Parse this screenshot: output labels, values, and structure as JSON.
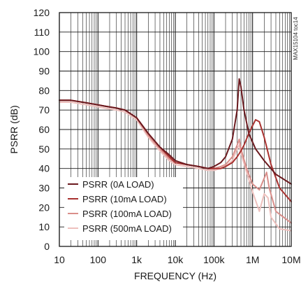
{
  "chart_data": {
    "type": "line",
    "xlabel": "FREQUENCY (Hz)",
    "ylabel": "PSRR (dB)",
    "figure_id": "MAX15104 toc14",
    "x_scale": "log",
    "xlim": [
      10,
      10000000
    ],
    "ylim": [
      0,
      120
    ],
    "x_ticks": [
      10,
      100,
      1000,
      10000,
      100000,
      1000000,
      10000000
    ],
    "x_tick_labels": [
      "10",
      "100",
      "1k",
      "10k",
      "100k",
      "1M",
      "10M"
    ],
    "y_ticks": [
      0,
      10,
      20,
      30,
      40,
      50,
      60,
      70,
      80,
      90,
      100,
      110,
      120
    ],
    "y_tick_labels": [
      "0",
      "10",
      "20",
      "30",
      "40",
      "50",
      "60",
      "70",
      "80",
      "90",
      "100",
      "110",
      "120"
    ],
    "grid": true,
    "legend_position": "bottom-left",
    "series": [
      {
        "name": "PSRR (0A LOAD)",
        "color": "#6b1a1f",
        "x": [
          10,
          20,
          40,
          80,
          150,
          300,
          500,
          1000,
          2000,
          4000,
          7000,
          10000,
          20000,
          40000,
          70000,
          100000,
          150000,
          200000,
          300000,
          400000,
          450000,
          500000,
          600000,
          800000,
          1200000,
          2000000,
          4000000,
          10000000
        ],
        "y": [
          75,
          75,
          74,
          73,
          72,
          71,
          70,
          66,
          58,
          51,
          47,
          44,
          42,
          41,
          40,
          41,
          43,
          46,
          55,
          70,
          86,
          82,
          70,
          58,
          50,
          44,
          37,
          32
        ]
      },
      {
        "name": "PSRR (10mA LOAD)",
        "color": "#a8312f",
        "x": [
          10,
          20,
          40,
          80,
          150,
          300,
          500,
          1000,
          2000,
          4000,
          7000,
          10000,
          20000,
          40000,
          70000,
          100000,
          150000,
          200000,
          300000,
          400000,
          500000,
          600000,
          800000,
          1000000,
          1200000,
          1500000,
          2000000,
          3000000,
          5000000,
          10000000
        ],
        "y": [
          75,
          75,
          74,
          73,
          72,
          71,
          70,
          66,
          58,
          51,
          46,
          43,
          42,
          41,
          40,
          40,
          40,
          41,
          43,
          46,
          49,
          52,
          58,
          62,
          65,
          64,
          56,
          42,
          30,
          23
        ]
      },
      {
        "name": "PSRR (100mA LOAD)",
        "color": "#d98e8a",
        "x": [
          10,
          20,
          40,
          80,
          150,
          300,
          500,
          1000,
          2000,
          4000,
          7000,
          10000,
          20000,
          40000,
          70000,
          100000,
          150000,
          200000,
          300000,
          400000,
          450000,
          500000,
          700000,
          1000000,
          1500000,
          2000000,
          2300000,
          2700000,
          4000000,
          10000000
        ],
        "y": [
          75,
          75,
          74,
          73,
          72,
          71,
          70,
          66,
          57,
          50,
          45,
          43,
          42,
          41,
          40,
          40,
          41,
          42,
          46,
          52,
          55,
          50,
          40,
          32,
          29,
          35,
          38,
          30,
          18,
          12
        ]
      },
      {
        "name": "PSRR (500mA LOAD)",
        "color": "#eec0bd",
        "x": [
          10,
          20,
          40,
          80,
          150,
          300,
          500,
          1000,
          2000,
          4000,
          7000,
          10000,
          20000,
          40000,
          70000,
          100000,
          150000,
          200000,
          300000,
          400000,
          450000,
          500000,
          700000,
          1000000,
          1500000,
          2000000,
          2500000,
          3000000,
          5000000,
          10000000
        ],
        "y": [
          74,
          74,
          73,
          72,
          71,
          70,
          69,
          65,
          56,
          49,
          44,
          42,
          41,
          40,
          39,
          39,
          40,
          41,
          44,
          50,
          52,
          48,
          38,
          28,
          18,
          27,
          25,
          15,
          9,
          8
        ]
      }
    ]
  }
}
